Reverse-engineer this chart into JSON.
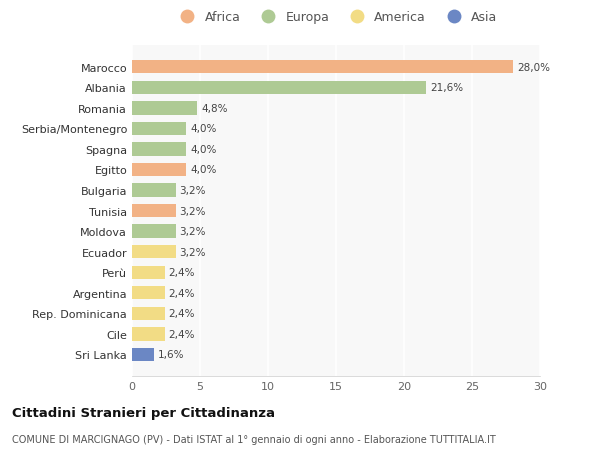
{
  "categories": [
    "Sri Lanka",
    "Cile",
    "Rep. Dominicana",
    "Argentina",
    "Perù",
    "Ecuador",
    "Moldova",
    "Tunisia",
    "Bulgaria",
    "Egitto",
    "Spagna",
    "Serbia/Montenegro",
    "Romania",
    "Albania",
    "Marocco"
  ],
  "values": [
    1.6,
    2.4,
    2.4,
    2.4,
    2.4,
    3.2,
    3.2,
    3.2,
    3.2,
    4.0,
    4.0,
    4.0,
    4.8,
    21.6,
    28.0
  ],
  "labels": [
    "1,6%",
    "2,4%",
    "2,4%",
    "2,4%",
    "2,4%",
    "3,2%",
    "3,2%",
    "3,2%",
    "3,2%",
    "4,0%",
    "4,0%",
    "4,0%",
    "4,8%",
    "21,6%",
    "28,0%"
  ],
  "continents": [
    "Asia",
    "America",
    "America",
    "America",
    "America",
    "America",
    "Europa",
    "Africa",
    "Europa",
    "Africa",
    "Europa",
    "Europa",
    "Europa",
    "Europa",
    "Africa"
  ],
  "colors": {
    "Africa": "#F2B285",
    "Europa": "#AECA94",
    "America": "#F2DC85",
    "Asia": "#6B87C4"
  },
  "legend_order": [
    "Africa",
    "Europa",
    "America",
    "Asia"
  ],
  "title": "Cittadini Stranieri per Cittadinanza",
  "subtitle": "COMUNE DI MARCIGNAGO (PV) - Dati ISTAT al 1° gennaio di ogni anno - Elaborazione TUTTITALIA.IT",
  "xlim": [
    0,
    30
  ],
  "xticks": [
    0,
    5,
    10,
    15,
    20,
    25,
    30
  ],
  "bg_color": "#ffffff",
  "plot_bg_color": "#f8f8f8"
}
